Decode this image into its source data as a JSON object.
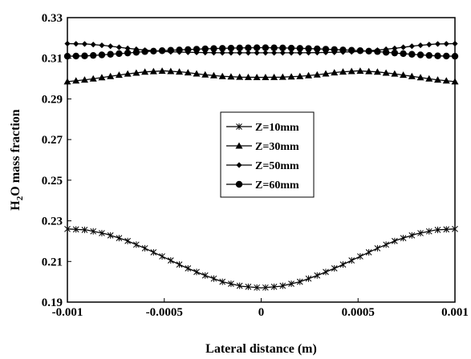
{
  "chart_data": {
    "type": "line",
    "xlabel": "Lateral distance (m)",
    "ylabel_main": "H",
    "ylabel_sub": "2",
    "ylabel_rest": "O mass fraction",
    "xlim": [
      -0.001,
      0.001
    ],
    "ylim": [
      0.19,
      0.33
    ],
    "x_ticks": [
      -0.001,
      -0.0005,
      0,
      0.0005,
      0.001
    ],
    "x_tick_labels": [
      "-0.001",
      "-0.0005",
      "0",
      "0.0005",
      "0.001"
    ],
    "y_ticks": [
      0.19,
      0.21,
      0.23,
      0.25,
      0.27,
      0.29,
      0.31,
      0.33
    ],
    "y_tick_labels": [
      "0.19",
      "0.21",
      "0.23",
      "0.25",
      "0.27",
      "0.29",
      "0.31",
      "0.33"
    ],
    "grid": false,
    "legend_position": "center",
    "series": [
      {
        "name": "Z=10mm",
        "marker": "star",
        "x": [
          -0.001,
          -0.0009,
          -0.0008,
          -0.0007,
          -0.0006,
          -0.0005,
          -0.0004,
          -0.0003,
          -0.0002,
          -0.0001,
          0,
          0.0001,
          0.0002,
          0.0003,
          0.0004,
          0.0005,
          0.0006,
          0.0007,
          0.0008,
          0.0009,
          0.001
        ],
        "values": [
          0.226,
          0.2255,
          0.2235,
          0.2205,
          0.2165,
          0.212,
          0.2075,
          0.2035,
          0.2,
          0.1978,
          0.197,
          0.1978,
          0.2,
          0.2035,
          0.2075,
          0.212,
          0.2165,
          0.2205,
          0.2235,
          0.2255,
          0.226
        ]
      },
      {
        "name": "Z=30mm",
        "marker": "triangle",
        "x": [
          -0.001,
          -0.0009,
          -0.0008,
          -0.0007,
          -0.0006,
          -0.0005,
          -0.0004,
          -0.0003,
          -0.0002,
          -0.0001,
          0,
          0.0001,
          0.0002,
          0.0003,
          0.0004,
          0.0005,
          0.0006,
          0.0007,
          0.0008,
          0.0009,
          0.001
        ],
        "values": [
          0.2985,
          0.2995,
          0.3008,
          0.3022,
          0.3033,
          0.3038,
          0.3032,
          0.302,
          0.3011,
          0.3007,
          0.3006,
          0.3007,
          0.3011,
          0.302,
          0.3032,
          0.3038,
          0.3033,
          0.3022,
          0.3008,
          0.2995,
          0.2985
        ]
      },
      {
        "name": "Z=50mm",
        "marker": "diamond",
        "x": [
          -0.001,
          -0.0009,
          -0.0008,
          -0.0007,
          -0.0006,
          -0.0005,
          -0.0004,
          -0.0003,
          -0.0002,
          -0.0001,
          0,
          0.0001,
          0.0002,
          0.0003,
          0.0004,
          0.0005,
          0.0006,
          0.0007,
          0.0008,
          0.0009,
          0.001
        ],
        "values": [
          0.3172,
          0.317,
          0.3162,
          0.315,
          0.314,
          0.3133,
          0.313,
          0.3128,
          0.3127,
          0.3127,
          0.3127,
          0.3127,
          0.3127,
          0.3128,
          0.313,
          0.3133,
          0.314,
          0.315,
          0.3162,
          0.317,
          0.3172
        ]
      },
      {
        "name": "Z=60mm",
        "marker": "circle",
        "x": [
          -0.001,
          -0.0009,
          -0.0008,
          -0.0007,
          -0.0006,
          -0.0005,
          -0.0004,
          -0.0003,
          -0.0002,
          -0.0001,
          0,
          0.0001,
          0.0002,
          0.0003,
          0.0004,
          0.0005,
          0.0006,
          0.0007,
          0.0008,
          0.0009,
          0.001
        ],
        "values": [
          0.311,
          0.3112,
          0.3118,
          0.3125,
          0.3133,
          0.3138,
          0.3142,
          0.3146,
          0.3149,
          0.3151,
          0.3152,
          0.3151,
          0.3149,
          0.3146,
          0.3142,
          0.3138,
          0.3133,
          0.3125,
          0.3118,
          0.3112,
          0.311
        ]
      }
    ]
  }
}
